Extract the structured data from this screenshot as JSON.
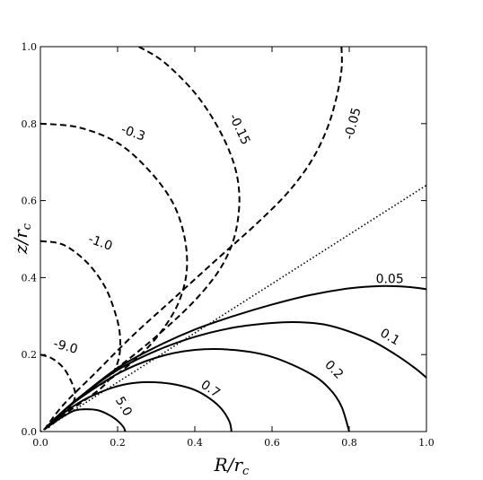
{
  "chart_data": {
    "type": "line",
    "title": "",
    "xlabel": "R/r",
    "xlabel_sub": "c",
    "ylabel": "z/r",
    "ylabel_sub": "c",
    "xlim": [
      0,
      1
    ],
    "ylim": [
      0,
      1
    ],
    "xticks": [
      "0.0",
      "0.2",
      "0.4",
      "0.6",
      "0.8",
      "1.0"
    ],
    "yticks": [
      "0.0",
      "0.2",
      "0.4",
      "0.6",
      "0.8",
      "1.0"
    ],
    "grid": false,
    "series": [
      {
        "label": "5.0",
        "style": "solid",
        "x": [
          0.01,
          0.03,
          0.06,
          0.09,
          0.12,
          0.15,
          0.18,
          0.2,
          0.215,
          0.22
        ],
        "y": [
          0.005,
          0.02,
          0.04,
          0.055,
          0.058,
          0.055,
          0.042,
          0.028,
          0.012,
          0.0
        ]
      },
      {
        "label": "0.7",
        "style": "solid",
        "x": [
          0.01,
          0.05,
          0.1,
          0.15,
          0.2,
          0.25,
          0.3,
          0.35,
          0.4,
          0.44,
          0.47,
          0.49,
          0.495
        ],
        "y": [
          0.005,
          0.04,
          0.075,
          0.1,
          0.118,
          0.127,
          0.128,
          0.122,
          0.108,
          0.085,
          0.058,
          0.025,
          0.0
        ]
      },
      {
        "label": "0.2",
        "style": "solid",
        "x": [
          0.01,
          0.05,
          0.1,
          0.2,
          0.3,
          0.4,
          0.5,
          0.6,
          0.7,
          0.75,
          0.78,
          0.8
        ],
        "y": [
          0.005,
          0.045,
          0.085,
          0.15,
          0.192,
          0.212,
          0.212,
          0.194,
          0.15,
          0.11,
          0.065,
          0.0
        ]
      },
      {
        "label": "0.1",
        "style": "solid",
        "x": [
          0.01,
          0.05,
          0.1,
          0.2,
          0.3,
          0.4,
          0.5,
          0.6,
          0.67,
          0.75,
          0.85,
          0.92,
          0.97,
          1.0
        ],
        "y": [
          0.005,
          0.045,
          0.088,
          0.16,
          0.21,
          0.246,
          0.27,
          0.282,
          0.284,
          0.275,
          0.24,
          0.2,
          0.165,
          0.14
        ]
      },
      {
        "label": "0.05",
        "style": "solid",
        "x": [
          0.01,
          0.05,
          0.1,
          0.2,
          0.3,
          0.4,
          0.5,
          0.6,
          0.7,
          0.8,
          0.88,
          0.95,
          1.0
        ],
        "y": [
          0.005,
          0.045,
          0.088,
          0.165,
          0.22,
          0.265,
          0.3,
          0.33,
          0.355,
          0.372,
          0.378,
          0.376,
          0.37
        ]
      },
      {
        "label": "",
        "style": "dotted",
        "x": [
          0.0,
          1.0
        ],
        "y": [
          0.0,
          0.64
        ]
      },
      {
        "label": "-9.0",
        "style": "dashed",
        "x": [
          0.0,
          0.03,
          0.06,
          0.08,
          0.09,
          0.085,
          0.07,
          0.05,
          0.02
        ],
        "y": [
          0.2,
          0.19,
          0.165,
          0.13,
          0.1,
          0.075,
          0.055,
          0.035,
          0.01
        ]
      },
      {
        "label": "-1.0",
        "style": "dashed",
        "x": [
          0.0,
          0.06,
          0.12,
          0.165,
          0.19,
          0.205,
          0.205,
          0.19,
          0.165,
          0.12,
          0.07,
          0.02
        ],
        "y": [
          0.495,
          0.485,
          0.44,
          0.38,
          0.32,
          0.26,
          0.2,
          0.155,
          0.12,
          0.085,
          0.05,
          0.012
        ]
      },
      {
        "label": "-0.3",
        "style": "dashed",
        "x": [
          0.0,
          0.1,
          0.2,
          0.28,
          0.34,
          0.37,
          0.38,
          0.37,
          0.34,
          0.28,
          0.2,
          0.12,
          0.05,
          0.01
        ],
        "y": [
          0.8,
          0.79,
          0.75,
          0.68,
          0.6,
          0.52,
          0.44,
          0.37,
          0.3,
          0.22,
          0.15,
          0.1,
          0.045,
          0.005
        ]
      },
      {
        "label": "-0.15",
        "style": "dashed",
        "x": [
          0.255,
          0.32,
          0.4,
          0.46,
          0.5,
          0.515,
          0.51,
          0.49,
          0.45,
          0.38,
          0.28,
          0.18,
          0.08,
          0.01
        ],
        "y": [
          1.0,
          0.96,
          0.88,
          0.79,
          0.7,
          0.62,
          0.54,
          0.47,
          0.4,
          0.32,
          0.23,
          0.15,
          0.07,
          0.005
        ]
      },
      {
        "label": "-0.05",
        "style": "dashed",
        "x": [
          0.78,
          0.78,
          0.765,
          0.74,
          0.7,
          0.64,
          0.56,
          0.46,
          0.35,
          0.24,
          0.14,
          0.06,
          0.01
        ],
        "y": [
          1.0,
          0.94,
          0.86,
          0.78,
          0.7,
          0.62,
          0.54,
          0.45,
          0.35,
          0.25,
          0.15,
          0.07,
          0.005
        ]
      }
    ],
    "annotations": [
      {
        "text": "5.0",
        "x": 0.215,
        "y": 0.065,
        "rotate": 60
      },
      {
        "text": "0.7",
        "x": 0.44,
        "y": 0.11,
        "rotate": 35
      },
      {
        "text": "0.2",
        "x": 0.76,
        "y": 0.16,
        "rotate": 45
      },
      {
        "text": "0.1",
        "x": 0.905,
        "y": 0.245,
        "rotate": 30
      },
      {
        "text": "0.05",
        "x": 0.905,
        "y": 0.395,
        "rotate": 0
      },
      {
        "text": "-9.0",
        "x": 0.065,
        "y": 0.22,
        "rotate": 15
      },
      {
        "text": "-1.0",
        "x": 0.155,
        "y": 0.49,
        "rotate": 20
      },
      {
        "text": "-0.3",
        "x": 0.24,
        "y": 0.775,
        "rotate": 20
      },
      {
        "text": "-0.15",
        "x": 0.515,
        "y": 0.785,
        "rotate": 65
      },
      {
        "text": "-0.05",
        "x": 0.81,
        "y": 0.8,
        "rotate": -75
      }
    ]
  }
}
